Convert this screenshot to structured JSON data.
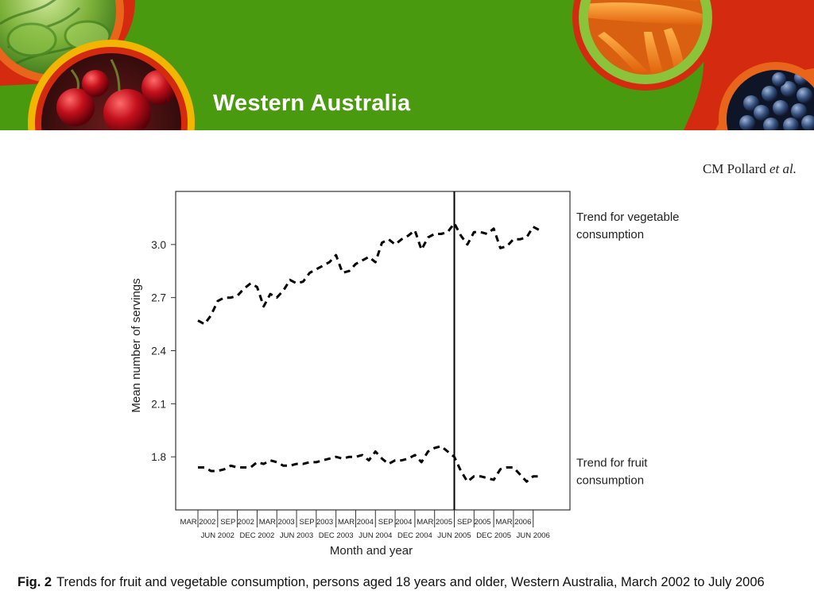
{
  "header": {
    "title": "Western Australia",
    "colors": {
      "green": "#4a9a0f",
      "red": "#d42a10",
      "yellow": "#f2b500",
      "orange": "#e9651b",
      "light_green": "#8bc43a"
    },
    "decor": [
      "lettuce-photo",
      "cherries-photo",
      "carrots-photo",
      "blueberries-photo"
    ]
  },
  "author": {
    "name": "CM Pollard",
    "suffix": "et al."
  },
  "caption": {
    "label": "Fig. 2",
    "text": "Trends for fruit and vegetable consumption, persons aged 18 years and older, Western Australia, March 2002 to July 2006"
  },
  "chart_data": {
    "type": "line",
    "xlabel": "Month and year",
    "ylabel": "Mean number of servings",
    "ylim": [
      1.5,
      3.3
    ],
    "yticks": [
      1.8,
      2.1,
      2.4,
      2.7,
      3.0
    ],
    "ytick_labels": [
      "1.8",
      "2.1",
      "2.4",
      "2.7",
      "3.0"
    ],
    "x_start": "Mar 2002",
    "x_end": "Jul 2006",
    "xlim": [
      "Mar 2002",
      "Jul 2006"
    ],
    "xticks_top": [
      "MAR 2002",
      "SEP 2002",
      "MAR 2003",
      "SEP 2003",
      "MAR 2004",
      "SEP 2004",
      "MAR 2005",
      "SEP 2005",
      "MAR 2006"
    ],
    "xticks_bottom": [
      "JUN 2002",
      "DEC 2002",
      "JUN 2003",
      "DEC 2003",
      "JUN 2004",
      "DEC 2004",
      "JUN 2005",
      "DEC 2005",
      "JUN 2006"
    ],
    "line_style": "dashed",
    "reference_line": {
      "x": "Jun 2005",
      "style": "solid"
    },
    "annotations": [
      {
        "line1": "Trend for vegetable",
        "line2": "consumption",
        "series": "vegetable"
      },
      {
        "line1": "Trend for fruit",
        "line2": "consumption",
        "series": "fruit"
      }
    ],
    "x": [
      "Mar 2002",
      "Apr 2002",
      "May 2002",
      "Jun 2002",
      "Jul 2002",
      "Aug 2002",
      "Sep 2002",
      "Oct 2002",
      "Nov 2002",
      "Dec 2002",
      "Jan 2003",
      "Feb 2003",
      "Mar 2003",
      "Apr 2003",
      "May 2003",
      "Jun 2003",
      "Jul 2003",
      "Aug 2003",
      "Sep 2003",
      "Oct 2003",
      "Nov 2003",
      "Dec 2003",
      "Jan 2004",
      "Feb 2004",
      "Mar 2004",
      "Apr 2004",
      "May 2004",
      "Jun 2004",
      "Jul 2004",
      "Aug 2004",
      "Sep 2004",
      "Oct 2004",
      "Nov 2004",
      "Dec 2004",
      "Jan 2005",
      "Feb 2005",
      "Mar 2005",
      "Apr 2005",
      "May 2005",
      "Jun 2005",
      "Jul 2005",
      "Aug 2005",
      "Sep 2005",
      "Oct 2005",
      "Nov 2005",
      "Dec 2005",
      "Jan 2006",
      "Feb 2006",
      "Mar 2006",
      "Apr 2006",
      "May 2006",
      "Jun 2006",
      "Jul 2006"
    ],
    "series": [
      {
        "key": "vegetable",
        "values": [
          2.57,
          2.55,
          2.6,
          2.68,
          2.7,
          2.7,
          2.71,
          2.75,
          2.78,
          2.76,
          2.65,
          2.72,
          2.7,
          2.74,
          2.8,
          2.78,
          2.79,
          2.84,
          2.86,
          2.88,
          2.9,
          2.94,
          2.84,
          2.85,
          2.89,
          2.91,
          2.93,
          2.9,
          3.01,
          3.03,
          3.0,
          3.03,
          3.05,
          3.08,
          2.97,
          3.04,
          3.06,
          3.06,
          3.07,
          3.12,
          3.05,
          3.0,
          3.07,
          3.07,
          3.06,
          3.09,
          2.98,
          2.99,
          3.03,
          3.03,
          3.04,
          3.1,
          3.08
        ]
      },
      {
        "key": "fruit",
        "values": [
          1.74,
          1.74,
          1.72,
          1.72,
          1.73,
          1.75,
          1.74,
          1.74,
          1.74,
          1.77,
          1.76,
          1.78,
          1.77,
          1.75,
          1.75,
          1.76,
          1.76,
          1.77,
          1.77,
          1.78,
          1.79,
          1.8,
          1.79,
          1.8,
          1.8,
          1.81,
          1.78,
          1.83,
          1.79,
          1.76,
          1.78,
          1.78,
          1.79,
          1.81,
          1.77,
          1.83,
          1.85,
          1.86,
          1.83,
          1.8,
          1.72,
          1.66,
          1.69,
          1.69,
          1.68,
          1.67,
          1.73,
          1.74,
          1.74,
          1.7,
          1.66,
          1.69,
          1.69
        ]
      }
    ]
  }
}
